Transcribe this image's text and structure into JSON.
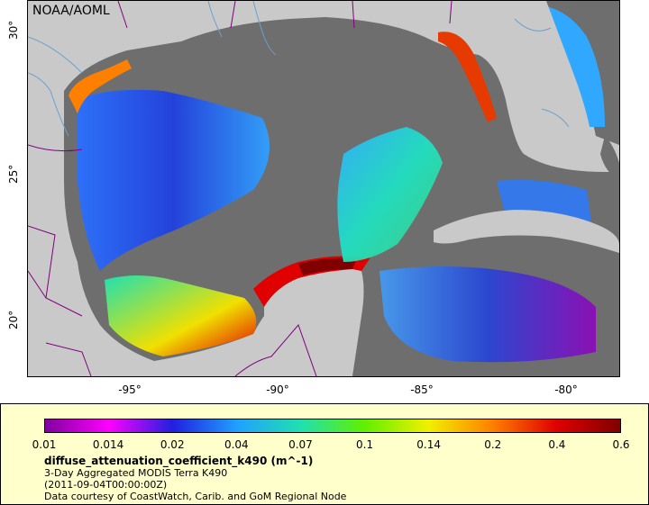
{
  "credit": "NOAA/AOML",
  "axes": {
    "x_ticks": [
      "-95°",
      "-90°",
      "-85°",
      "-80°"
    ],
    "y_ticks": [
      "30°",
      "25°",
      "20°"
    ]
  },
  "legend": {
    "ticks": [
      "0.01",
      "0.014",
      "0.02",
      "0.04",
      "0.07",
      "0.1",
      "0.14",
      "0.2",
      "0.4",
      "0.6"
    ],
    "colors": [
      "#8000a0",
      "#ff00ff",
      "#2020e0",
      "#20a0ff",
      "#20e0b0",
      "#60f000",
      "#f0f000",
      "#ff8000",
      "#e00000",
      "#800000"
    ],
    "title": "diffuse_attenuation_coefficient_k490 (m^-1)",
    "line1": "3-Day Aggregated MODIS Terra K490",
    "line2": "(2011-09-04T00:00:00Z)",
    "line3": "Data courtesy of CoastWatch, Carib. and GoM Regional Node"
  },
  "colors": {
    "land": "#c9c9c9",
    "no_data": "#6e6e6e",
    "border": "#800080",
    "river": "#6aa0d0"
  }
}
